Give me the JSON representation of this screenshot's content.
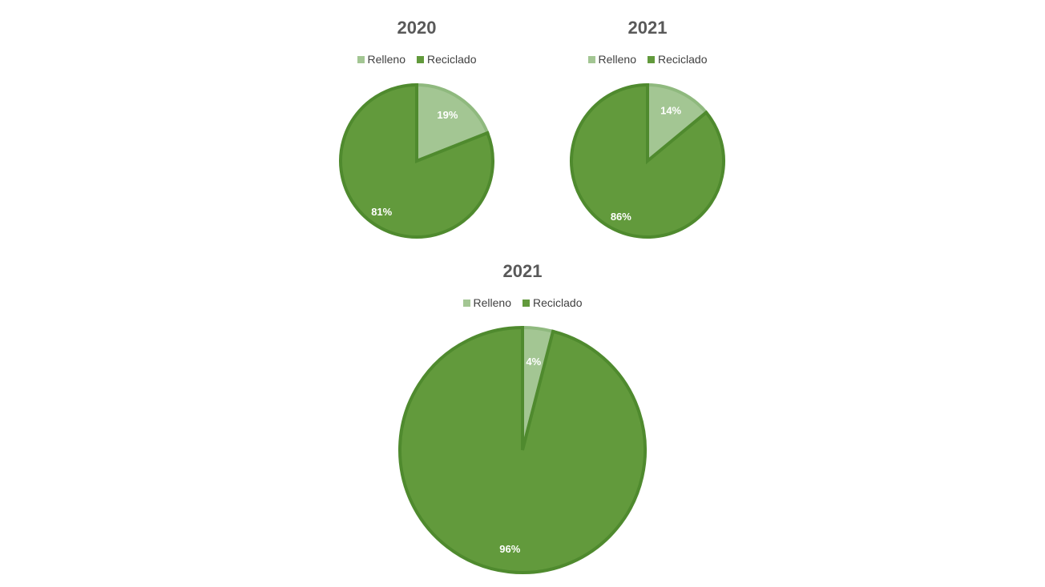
{
  "colors": {
    "relleno_fill": "#a3c693",
    "relleno_edge": "#8fb97e",
    "reciclado_fill": "#629a3c",
    "reciclado_edge": "#4f8a2e"
  },
  "chart_data": [
    {
      "type": "pie",
      "title": "2020",
      "legend_position": "top",
      "categories": [
        "Relleno",
        "Reciclado"
      ],
      "values": [
        19,
        81
      ],
      "labels": [
        "19%",
        "81%"
      ]
    },
    {
      "type": "pie",
      "title": "2021",
      "legend_position": "top",
      "categories": [
        "Relleno",
        "Reciclado"
      ],
      "values": [
        14,
        86
      ],
      "labels": [
        "14%",
        "86%"
      ]
    },
    {
      "type": "pie",
      "title": "2021",
      "legend_position": "top",
      "categories": [
        "Relleno",
        "Reciclado"
      ],
      "values": [
        4,
        96
      ],
      "labels": [
        "4%",
        "96%"
      ]
    }
  ]
}
